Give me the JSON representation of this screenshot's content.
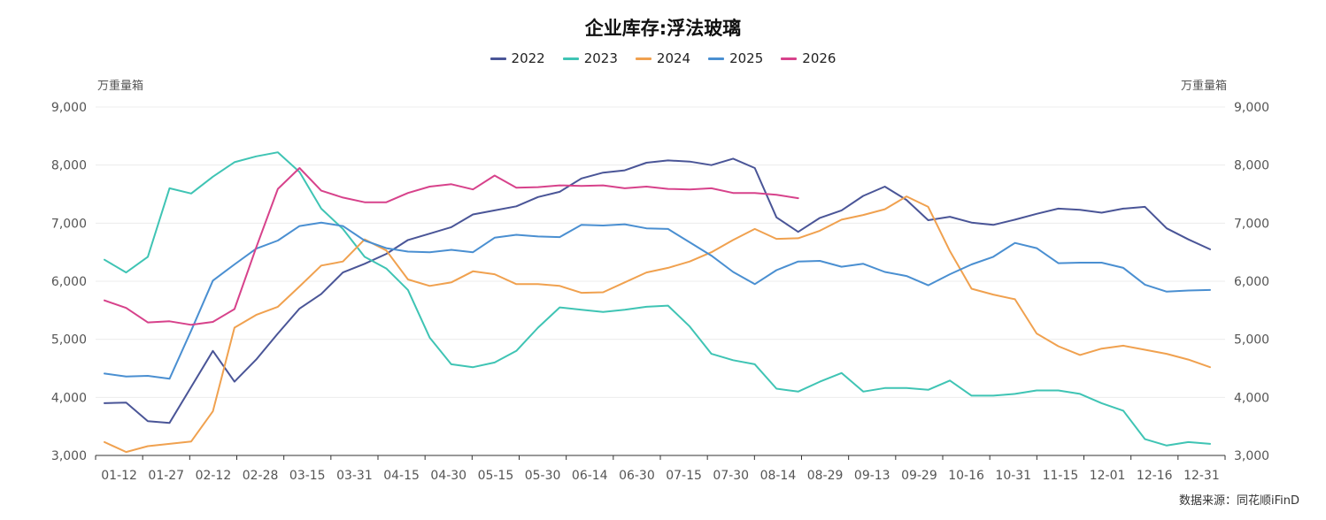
{
  "chart_data": {
    "type": "line",
    "title": "企业库存:浮法玻璃",
    "left_axis_label": "万重量箱",
    "right_axis_label": "万重量箱",
    "source": "数据来源：同花顺iFinD",
    "ylim": [
      3000,
      9000
    ],
    "y_ticks": [
      "3,000",
      "4,000",
      "5,000",
      "6,000",
      "7,000",
      "8,000",
      "9,000"
    ],
    "x_tick_labels": [
      "01-12",
      "01-27",
      "02-12",
      "02-28",
      "03-15",
      "03-31",
      "04-15",
      "04-30",
      "05-15",
      "05-30",
      "06-14",
      "06-30",
      "07-15",
      "07-30",
      "08-14",
      "08-29",
      "09-13",
      "09-29",
      "10-16",
      "10-31",
      "11-15",
      "12-01",
      "12-16",
      "12-31"
    ],
    "grid": "horizontal",
    "legend_position": "top-center",
    "series": [
      {
        "name": "2022",
        "color": "#4a5597",
        "start_index": 0,
        "values": [
          3900,
          3910,
          3590,
          3560,
          4180,
          4800,
          4270,
          4650,
          5100,
          5530,
          5780,
          6150,
          6300,
          6470,
          6710,
          6820,
          6930,
          7150,
          7220,
          7290,
          7450,
          7540,
          7770,
          7870,
          7910,
          8040,
          8080,
          8060,
          8000,
          8110,
          7950,
          7100,
          6850,
          7090,
          7220,
          7470,
          7630,
          7400,
          7050,
          7110,
          7010,
          6970,
          7060,
          7160,
          7250,
          7230,
          7180,
          7250,
          7280,
          6910,
          6720,
          6550
        ]
      },
      {
        "name": "2023",
        "color": "#3fc4b4",
        "start_index": 0,
        "values": [
          6370,
          6150,
          6420,
          7600,
          7510,
          7800,
          8050,
          8150,
          8220,
          7880,
          7250,
          6900,
          6420,
          6220,
          5850,
          5030,
          4570,
          4520,
          4600,
          4800,
          5200,
          5550,
          5510,
          5470,
          5510,
          5560,
          5580,
          5220,
          4750,
          4640,
          4570,
          4150,
          4100,
          4270,
          4420,
          4100,
          4160,
          4160,
          4130,
          4290,
          4030,
          4030,
          4060,
          4120,
          4120,
          4060,
          3900,
          3770,
          3280,
          3170,
          3230,
          3200
        ]
      },
      {
        "name": "2024",
        "color": "#f0a14f",
        "start_index": 0,
        "values": [
          3230,
          3060,
          3160,
          3200,
          3240,
          3760,
          5200,
          5420,
          5560,
          5910,
          6270,
          6340,
          6720,
          6530,
          6030,
          5920,
          5980,
          6170,
          6120,
          5950,
          5950,
          5920,
          5800,
          5810,
          5980,
          6150,
          6230,
          6340,
          6500,
          6710,
          6900,
          6730,
          6740,
          6870,
          7060,
          7140,
          7240,
          7460,
          7280,
          6520,
          5870,
          5770,
          5690,
          5100,
          4880,
          4730,
          4840,
          4890,
          4820,
          4750,
          4650,
          4520
        ]
      },
      {
        "name": "2025",
        "color": "#4a8fd1",
        "start_index": 0,
        "values": [
          4410,
          4360,
          4370,
          4320,
          5150,
          6010,
          6290,
          6560,
          6700,
          6950,
          7010,
          6950,
          6700,
          6570,
          6510,
          6500,
          6540,
          6500,
          6750,
          6800,
          6770,
          6760,
          6970,
          6960,
          6980,
          6910,
          6900,
          6670,
          6440,
          6160,
          5950,
          6190,
          6340,
          6350,
          6250,
          6300,
          6160,
          6090,
          5930,
          6120,
          6290,
          6420,
          6660,
          6570,
          6310,
          6320,
          6320,
          6230,
          5940,
          5820,
          5840,
          5850
        ]
      },
      {
        "name": "2026",
        "color": "#d7428b",
        "start_index": 0,
        "values": [
          5670,
          5540,
          5290,
          5310,
          5250,
          5300,
          5520,
          6580,
          7590,
          7950,
          7560,
          7440,
          7360,
          7360,
          7520,
          7630,
          7670,
          7580,
          7820,
          7610,
          7620,
          7650,
          7640,
          7650,
          7600,
          7630,
          7590,
          7580,
          7600,
          7520,
          7520,
          7490,
          7430
        ]
      }
    ]
  }
}
